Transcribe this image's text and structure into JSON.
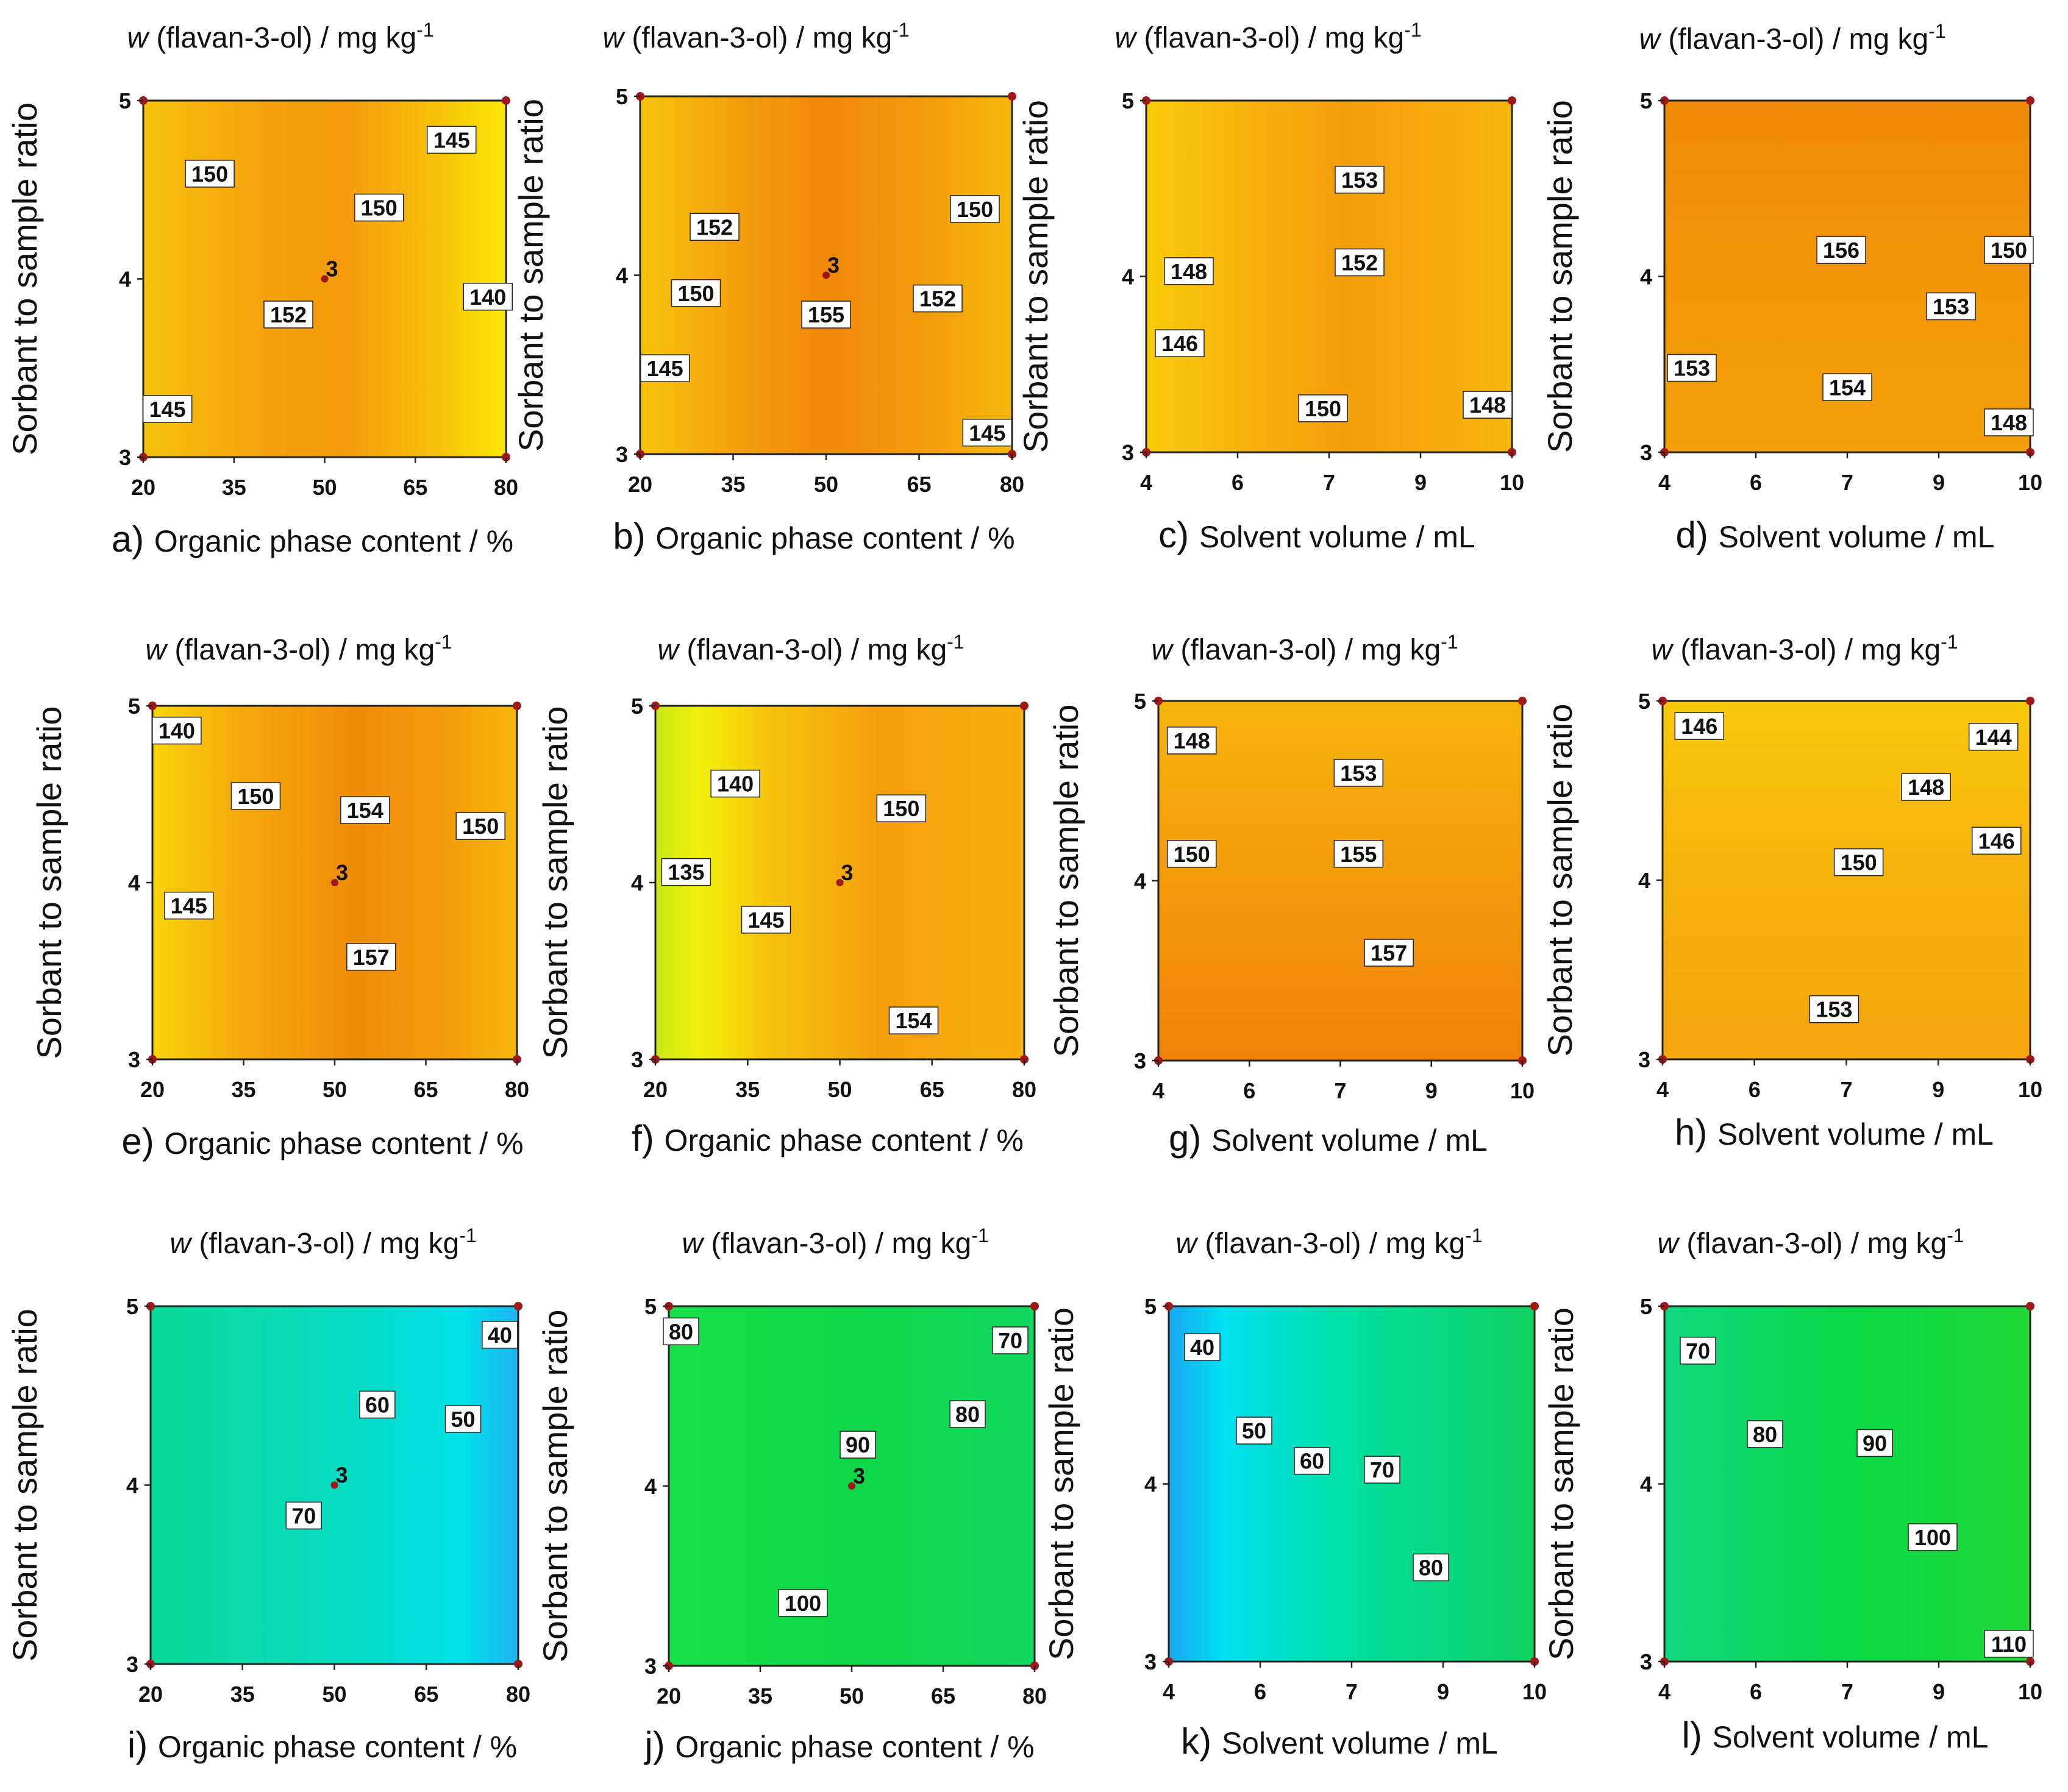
{
  "chart_data": [
    {
      "panel": "a",
      "type": "heatmap",
      "title": "w (flavan-3-ol) / mg kg-1",
      "xlabel": "Organic phase content / %",
      "ylabel": "Sorbant to sample ratio",
      "xticks": [
        "20",
        "35",
        "50",
        "65",
        "80"
      ],
      "yticks": [
        "3",
        "4",
        "5"
      ],
      "xlim": [
        20,
        80
      ],
      "ylim": [
        3,
        5
      ],
      "palette": "orange",
      "center_point": {
        "x": 50,
        "y": 4,
        "label": "3"
      },
      "contours": [
        {
          "label": "150",
          "x": 31,
          "y": 4.59
        },
        {
          "label": "152",
          "x": 44,
          "y": 3.8
        },
        {
          "label": "150",
          "x": 59,
          "y": 4.4
        },
        {
          "label": "145",
          "x": 71,
          "y": 4.78
        },
        {
          "label": "140",
          "x": 77,
          "y": 3.9
        },
        {
          "label": "145",
          "x": 24,
          "y": 3.27
        }
      ]
    },
    {
      "panel": "b",
      "type": "heatmap",
      "title": "w (flavan-3-ol) / mg kg-1",
      "xlabel": "Organic phase content / %",
      "ylabel": "Sorbant to sample ratio",
      "xticks": [
        "20",
        "35",
        "50",
        "65",
        "80"
      ],
      "yticks": [
        "3",
        "4",
        "5"
      ],
      "xlim": [
        20,
        80
      ],
      "ylim": [
        3,
        5
      ],
      "palette": "orange",
      "center_point": {
        "x": 50,
        "y": 4,
        "label": "3"
      },
      "contours": [
        {
          "label": "152",
          "x": 32,
          "y": 4.27
        },
        {
          "label": "150",
          "x": 29,
          "y": 3.9
        },
        {
          "label": "145",
          "x": 24,
          "y": 3.48
        },
        {
          "label": "155",
          "x": 50,
          "y": 3.78
        },
        {
          "label": "152",
          "x": 68,
          "y": 3.87
        },
        {
          "label": "150",
          "x": 74,
          "y": 4.37
        },
        {
          "label": "145",
          "x": 76,
          "y": 3.12
        }
      ]
    },
    {
      "panel": "c",
      "type": "heatmap",
      "title": "w (flavan-3-ol) / mg kg-1",
      "xlabel": "Solvent volume / mL",
      "ylabel": "Sorbant to sample ratio",
      "xticks": [
        "4",
        "6",
        "7",
        "9",
        "10"
      ],
      "yticks": [
        "3",
        "4",
        "5"
      ],
      "xlim": [
        4,
        10
      ],
      "ylim": [
        3,
        5
      ],
      "palette": "orange",
      "contours": [
        {
          "label": "153",
          "x": 7.5,
          "y": 4.55
        },
        {
          "label": "152",
          "x": 7.5,
          "y": 4.08
        },
        {
          "label": "148",
          "x": 4.7,
          "y": 4.03
        },
        {
          "label": "146",
          "x": 4.55,
          "y": 3.62
        },
        {
          "label": "150",
          "x": 6.9,
          "y": 3.25
        },
        {
          "label": "148",
          "x": 9.6,
          "y": 3.27
        }
      ]
    },
    {
      "panel": "d",
      "type": "heatmap",
      "title": "w (flavan-3-ol) / mg kg-1",
      "xlabel": "Solvent volume / mL",
      "ylabel": "Sorbant to sample ratio",
      "xticks": [
        "4",
        "6",
        "7",
        "9",
        "10"
      ],
      "yticks": [
        "3",
        "4",
        "5"
      ],
      "xlim": [
        4,
        10
      ],
      "ylim": [
        3,
        5
      ],
      "palette": "orange",
      "contours": [
        {
          "label": "156",
          "x": 6.9,
          "y": 4.15
        },
        {
          "label": "150",
          "x": 9.65,
          "y": 4.15
        },
        {
          "label": "153",
          "x": 8.7,
          "y": 3.83
        },
        {
          "label": "153",
          "x": 4.45,
          "y": 3.48
        },
        {
          "label": "154",
          "x": 7.0,
          "y": 3.37
        },
        {
          "label": "148",
          "x": 9.65,
          "y": 3.17
        }
      ]
    },
    {
      "panel": "e",
      "type": "heatmap",
      "title": "w (flavan-3-ol) / mg kg-1",
      "xlabel": "Organic phase content / %",
      "ylabel": "Sorbant to sample ratio",
      "xticks": [
        "20",
        "35",
        "50",
        "65",
        "80"
      ],
      "yticks": [
        "3",
        "4",
        "5"
      ],
      "xlim": [
        20,
        80
      ],
      "ylim": [
        3,
        5
      ],
      "palette": "orange",
      "center_point": {
        "x": 50,
        "y": 4,
        "label": "3"
      },
      "contours": [
        {
          "label": "140",
          "x": 24,
          "y": 4.86
        },
        {
          "label": "150",
          "x": 37,
          "y": 4.49
        },
        {
          "label": "154",
          "x": 55,
          "y": 4.41
        },
        {
          "label": "150",
          "x": 74,
          "y": 4.32
        },
        {
          "label": "145",
          "x": 26,
          "y": 3.87
        },
        {
          "label": "157",
          "x": 56,
          "y": 3.58
        }
      ]
    },
    {
      "panel": "f",
      "type": "heatmap",
      "title": "w (flavan-3-ol) / mg kg-1",
      "xlabel": "Organic phase content / %",
      "ylabel": "Sorbant to sample ratio",
      "xticks": [
        "20",
        "35",
        "50",
        "65",
        "80"
      ],
      "yticks": [
        "3",
        "4",
        "5"
      ],
      "xlim": [
        20,
        80
      ],
      "ylim": [
        3,
        5
      ],
      "palette": "orange",
      "center_point": {
        "x": 50,
        "y": 4,
        "label": "3"
      },
      "contours": [
        {
          "label": "140",
          "x": 33,
          "y": 4.56
        },
        {
          "label": "150",
          "x": 60,
          "y": 4.42
        },
        {
          "label": "135",
          "x": 25,
          "y": 4.06
        },
        {
          "label": "145",
          "x": 38,
          "y": 3.79
        },
        {
          "label": "154",
          "x": 62,
          "y": 3.22
        }
      ]
    },
    {
      "panel": "g",
      "type": "heatmap",
      "title": "w (flavan-3-ol) / mg kg-1",
      "xlabel": "Solvent volume / mL",
      "ylabel": "Sorbant to sample ratio",
      "xticks": [
        "4",
        "6",
        "7",
        "9",
        "10"
      ],
      "yticks": [
        "3",
        "4",
        "5"
      ],
      "xlim": [
        4,
        10
      ],
      "ylim": [
        3,
        5
      ],
      "palette": "orange",
      "contours": [
        {
          "label": "148",
          "x": 4.55,
          "y": 4.78
        },
        {
          "label": "153",
          "x": 7.3,
          "y": 4.6
        },
        {
          "label": "150",
          "x": 4.55,
          "y": 4.15
        },
        {
          "label": "155",
          "x": 7.3,
          "y": 4.15
        },
        {
          "label": "157",
          "x": 7.8,
          "y": 3.6
        }
      ]
    },
    {
      "panel": "h",
      "type": "heatmap",
      "title": "w (flavan-3-ol) / mg kg-1",
      "xlabel": "Solvent volume / mL",
      "ylabel": "Sorbant to sample ratio",
      "xticks": [
        "4",
        "6",
        "7",
        "9",
        "10"
      ],
      "yticks": [
        "3",
        "4",
        "5"
      ],
      "xlim": [
        4,
        10
      ],
      "ylim": [
        3,
        5
      ],
      "palette": "orange",
      "contours": [
        {
          "label": "146",
          "x": 4.6,
          "y": 4.86
        },
        {
          "label": "144",
          "x": 9.4,
          "y": 4.8
        },
        {
          "label": "148",
          "x": 8.3,
          "y": 4.52
        },
        {
          "label": "146",
          "x": 9.45,
          "y": 4.22
        },
        {
          "label": "150",
          "x": 7.2,
          "y": 4.1
        },
        {
          "label": "153",
          "x": 6.8,
          "y": 3.28
        }
      ]
    },
    {
      "panel": "i",
      "type": "heatmap",
      "title": "w (flavan-3-ol) / mg kg-1",
      "xlabel": "Organic phase content / %",
      "ylabel": "Sorbant to sample ratio",
      "xticks": [
        "20",
        "35",
        "50",
        "65",
        "80"
      ],
      "yticks": [
        "3",
        "4",
        "5"
      ],
      "xlim": [
        20,
        80
      ],
      "ylim": [
        3,
        5
      ],
      "palette": "cyan",
      "center_point": {
        "x": 50,
        "y": 4,
        "label": "3"
      },
      "contours": [
        {
          "label": "40",
          "x": 77,
          "y": 4.84
        },
        {
          "label": "60",
          "x": 57,
          "y": 4.45
        },
        {
          "label": "50",
          "x": 71,
          "y": 4.37
        },
        {
          "label": "70",
          "x": 45,
          "y": 3.83
        }
      ]
    },
    {
      "panel": "j",
      "type": "heatmap",
      "title": "w (flavan-3-ol) / mg kg-1",
      "xlabel": "Organic phase content / %",
      "ylabel": "Sorbant to sample ratio",
      "xticks": [
        "20",
        "35",
        "50",
        "65",
        "80"
      ],
      "yticks": [
        "3",
        "4",
        "5"
      ],
      "xlim": [
        20,
        80
      ],
      "ylim": [
        3,
        5
      ],
      "palette": "green",
      "center_point": {
        "x": 50,
        "y": 4,
        "label": "3"
      },
      "contours": [
        {
          "label": "80",
          "x": 22,
          "y": 4.86
        },
        {
          "label": "70",
          "x": 76,
          "y": 4.81
        },
        {
          "label": "80",
          "x": 69,
          "y": 4.4
        },
        {
          "label": "90",
          "x": 51,
          "y": 4.23
        },
        {
          "label": "100",
          "x": 42,
          "y": 3.35
        }
      ]
    },
    {
      "panel": "k",
      "type": "heatmap",
      "title": "w (flavan-3-ol) / mg kg-1",
      "xlabel": "Solvent volume / mL",
      "ylabel": "Sorbant to sample ratio",
      "xticks": [
        "4",
        "6",
        "7",
        "9",
        "10"
      ],
      "yticks": [
        "3",
        "4",
        "5"
      ],
      "xlim": [
        4,
        10
      ],
      "ylim": [
        3,
        5
      ],
      "palette": "green-cyan",
      "contours": [
        {
          "label": "40",
          "x": 4.55,
          "y": 4.77
        },
        {
          "label": "50",
          "x": 5.4,
          "y": 4.3
        },
        {
          "label": "60",
          "x": 6.35,
          "y": 4.13
        },
        {
          "label": "70",
          "x": 7.5,
          "y": 4.08
        },
        {
          "label": "80",
          "x": 8.3,
          "y": 3.53
        }
      ]
    },
    {
      "panel": "l",
      "type": "heatmap",
      "title": "w (flavan-3-ol) / mg kg-1",
      "xlabel": "Solvent volume / mL",
      "ylabel": "Sorbant to sample ratio",
      "xticks": [
        "4",
        "6",
        "7",
        "9",
        "10"
      ],
      "yticks": [
        "3",
        "4",
        "5"
      ],
      "xlim": [
        4,
        10
      ],
      "ylim": [
        3,
        5
      ],
      "palette": "green",
      "contours": [
        {
          "label": "70",
          "x": 4.55,
          "y": 4.75
        },
        {
          "label": "80",
          "x": 5.65,
          "y": 4.28
        },
        {
          "label": "90",
          "x": 7.45,
          "y": 4.23
        },
        {
          "label": "100",
          "x": 8.4,
          "y": 3.7
        },
        {
          "label": "110",
          "x": 9.65,
          "y": 3.1
        }
      ]
    }
  ],
  "panel_letters": [
    "a)",
    "b)",
    "c)",
    "d)",
    "e)",
    "f)",
    "g)",
    "h)",
    "i)",
    "j)",
    "k)",
    "l)"
  ],
  "colors": {
    "orange": [
      "#f7c20a",
      "#f59a0c",
      "#f08008"
    ],
    "cyan": [
      "#00c880",
      "#00e0e0",
      "#0aa0f0"
    ],
    "green": [
      "#00e040",
      "#10d060",
      "#20e060"
    ]
  }
}
